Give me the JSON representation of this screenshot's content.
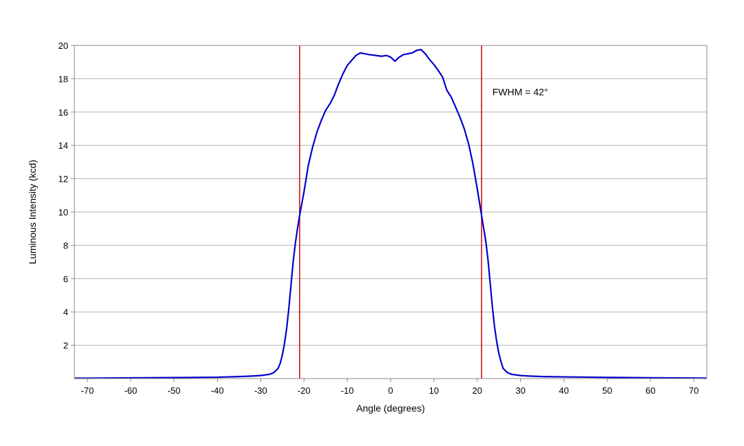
{
  "chart_data": {
    "type": "line",
    "title": "",
    "xlabel": "Angle (degrees)",
    "ylabel": "Luminous Intensity (kcd)",
    "xlim": [
      -73,
      73
    ],
    "ylim": [
      0,
      20
    ],
    "x_ticks": [
      -70,
      -60,
      -50,
      -40,
      -30,
      -20,
      -10,
      0,
      10,
      20,
      30,
      40,
      50,
      60,
      70
    ],
    "y_ticks": [
      2,
      4,
      6,
      8,
      10,
      12,
      14,
      16,
      18,
      20
    ],
    "grid": "horizontal",
    "legend": "none",
    "series": [
      {
        "color": "#0000cc",
        "points": [
          [
            -73,
            0.02
          ],
          [
            -70,
            0.02
          ],
          [
            -60,
            0.04
          ],
          [
            -50,
            0.06
          ],
          [
            -40,
            0.08
          ],
          [
            -35,
            0.12
          ],
          [
            -32,
            0.15
          ],
          [
            -30,
            0.18
          ],
          [
            -28,
            0.25
          ],
          [
            -27,
            0.35
          ],
          [
            -26,
            0.6
          ],
          [
            -25.5,
            0.9
          ],
          [
            -25,
            1.4
          ],
          [
            -24.5,
            2.1
          ],
          [
            -24,
            3.0
          ],
          [
            -23.5,
            4.2
          ],
          [
            -23,
            5.6
          ],
          [
            -22.5,
            7.0
          ],
          [
            -22,
            8.1
          ],
          [
            -21.5,
            9.0
          ],
          [
            -21,
            9.8
          ],
          [
            -20,
            11.2
          ],
          [
            -19.5,
            12.0
          ],
          [
            -19,
            12.8
          ],
          [
            -18,
            13.9
          ],
          [
            -17,
            14.8
          ],
          [
            -16,
            15.5
          ],
          [
            -15,
            16.1
          ],
          [
            -14,
            16.5
          ],
          [
            -13,
            17.0
          ],
          [
            -12,
            17.7
          ],
          [
            -11,
            18.3
          ],
          [
            -10,
            18.8
          ],
          [
            -9,
            19.1
          ],
          [
            -8,
            19.4
          ],
          [
            -7,
            19.55
          ],
          [
            -6,
            19.5
          ],
          [
            -5,
            19.45
          ],
          [
            -4,
            19.42
          ],
          [
            -3,
            19.38
          ],
          [
            -2,
            19.35
          ],
          [
            -1,
            19.4
          ],
          [
            0,
            19.3
          ],
          [
            1,
            19.05
          ],
          [
            2,
            19.3
          ],
          [
            3,
            19.45
          ],
          [
            4,
            19.5
          ],
          [
            5,
            19.55
          ],
          [
            6,
            19.7
          ],
          [
            7,
            19.75
          ],
          [
            8,
            19.5
          ],
          [
            9,
            19.15
          ],
          [
            10,
            18.85
          ],
          [
            11,
            18.5
          ],
          [
            12,
            18.1
          ],
          [
            13,
            17.3
          ],
          [
            14,
            16.9
          ],
          [
            15,
            16.3
          ],
          [
            16,
            15.7
          ],
          [
            17,
            15.0
          ],
          [
            18,
            14.1
          ],
          [
            19,
            12.9
          ],
          [
            20,
            11.4
          ],
          [
            21,
            9.8
          ],
          [
            21.5,
            9.0
          ],
          [
            22,
            8.2
          ],
          [
            22.5,
            7.1
          ],
          [
            23,
            5.7
          ],
          [
            23.5,
            4.3
          ],
          [
            24,
            3.1
          ],
          [
            24.5,
            2.2
          ],
          [
            25,
            1.5
          ],
          [
            25.5,
            1.0
          ],
          [
            26,
            0.6
          ],
          [
            27,
            0.35
          ],
          [
            28,
            0.25
          ],
          [
            30,
            0.18
          ],
          [
            32,
            0.15
          ],
          [
            35,
            0.12
          ],
          [
            40,
            0.1
          ],
          [
            50,
            0.07
          ],
          [
            60,
            0.05
          ],
          [
            70,
            0.03
          ],
          [
            73,
            0.02
          ]
        ]
      }
    ],
    "reference_lines": [
      {
        "x": -21,
        "color": "#cc0000"
      },
      {
        "x": 21,
        "color": "#cc0000"
      }
    ],
    "annotations": [
      {
        "text": "FWHM = 42°",
        "x": 23.5,
        "y": 17.0
      }
    ]
  }
}
